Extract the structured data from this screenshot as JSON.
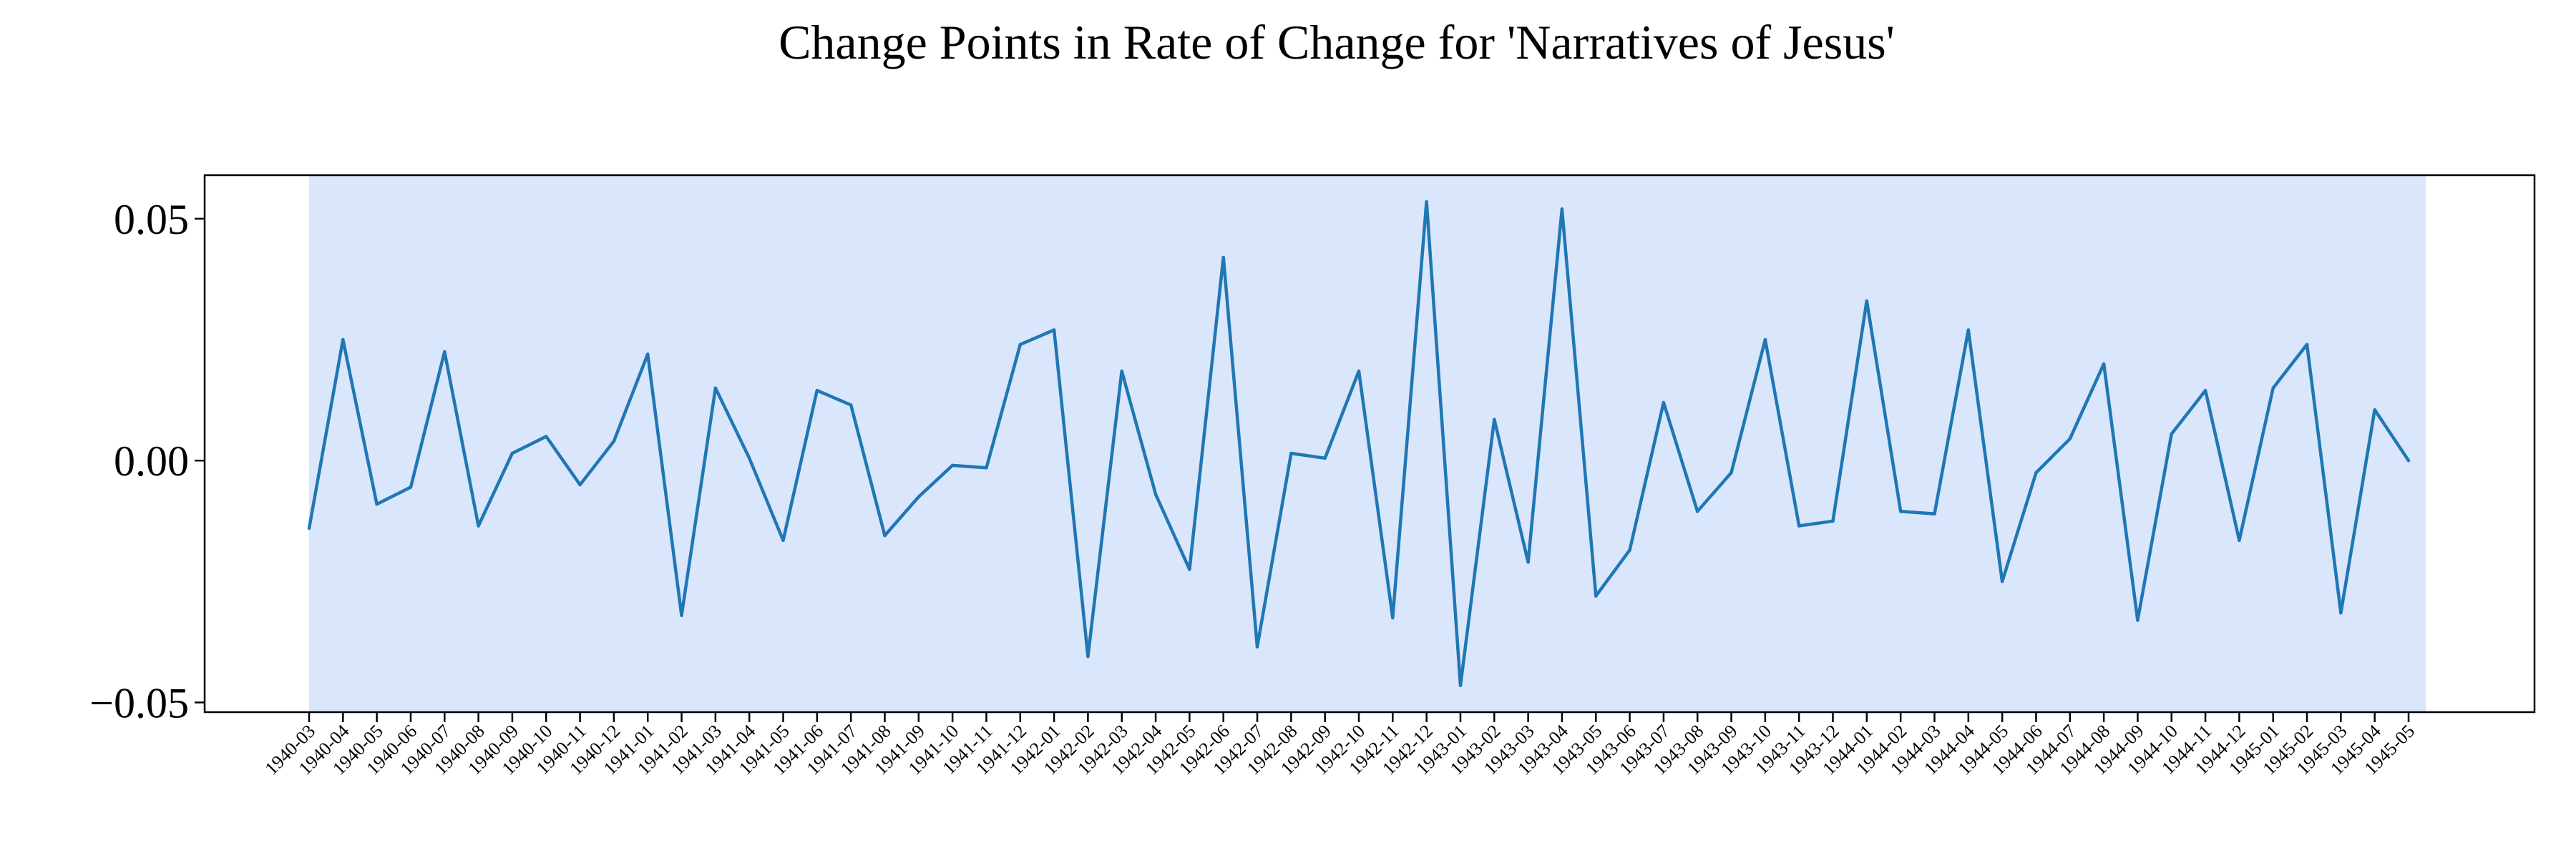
{
  "chart_data": {
    "type": "line",
    "title": "Change Points in Rate of Change for 'Narratives of Jesus'",
    "xlabel": "",
    "ylabel": "",
    "ylim": [
      -0.052,
      0.059
    ],
    "y_ticks": [
      {
        "value": 0.05,
        "label": "0.05"
      },
      {
        "value": 0.0,
        "label": "0.00"
      },
      {
        "value": -0.05,
        "label": "−0.05"
      }
    ],
    "grid": false,
    "legend": "none",
    "shaded_region": {
      "x_start": "1940-03",
      "x_end": "1945-05",
      "color": "#dae6fb"
    },
    "line_color": "#1f77b4",
    "x": [
      "1940-03",
      "1940-04",
      "1940-05",
      "1940-06",
      "1940-07",
      "1940-08",
      "1940-09",
      "1940-10",
      "1940-11",
      "1940-12",
      "1941-01",
      "1941-02",
      "1941-03",
      "1941-04",
      "1941-05",
      "1941-06",
      "1941-07",
      "1941-08",
      "1941-09",
      "1941-10",
      "1941-11",
      "1941-12",
      "1942-01",
      "1942-02",
      "1942-03",
      "1942-04",
      "1942-05",
      "1942-06",
      "1942-07",
      "1942-08",
      "1942-09",
      "1942-10",
      "1942-11",
      "1942-12",
      "1943-01",
      "1943-02",
      "1943-03",
      "1943-04",
      "1943-05",
      "1943-06",
      "1943-07",
      "1943-08",
      "1943-09",
      "1943-10",
      "1943-11",
      "1943-12",
      "1944-01",
      "1944-02",
      "1944-03",
      "1944-04",
      "1944-05",
      "1944-06",
      "1944-07",
      "1944-08",
      "1944-09",
      "1944-10",
      "1944-11",
      "1944-12",
      "1945-01",
      "1945-02",
      "1945-03",
      "1945-04",
      "1945-05"
    ],
    "series": [
      {
        "values": [
          -0.014,
          0.025,
          -0.009,
          -0.0055,
          0.0225,
          -0.0135,
          0.0015,
          0.005,
          -0.005,
          0.004,
          0.022,
          -0.032,
          0.015,
          0.0005,
          -0.0165,
          0.0145,
          0.0115,
          -0.0155,
          -0.0075,
          -0.001,
          -0.0015,
          0.024,
          0.027,
          -0.0405,
          0.0185,
          -0.007,
          -0.0225,
          0.042,
          -0.0385,
          0.0015,
          0.0005,
          0.0185,
          -0.0325,
          0.0535,
          -0.0465,
          0.0085,
          -0.021,
          0.052,
          -0.028,
          -0.0185,
          0.012,
          -0.0105,
          -0.0025,
          0.025,
          -0.0135,
          -0.0125,
          0.033,
          -0.0105,
          -0.011,
          0.027,
          -0.025,
          -0.0025,
          0.0045,
          0.02,
          -0.033,
          0.0055,
          0.0145,
          -0.0165,
          0.015,
          0.024,
          -0.0315,
          0.0105,
          0.0
        ]
      }
    ]
  }
}
